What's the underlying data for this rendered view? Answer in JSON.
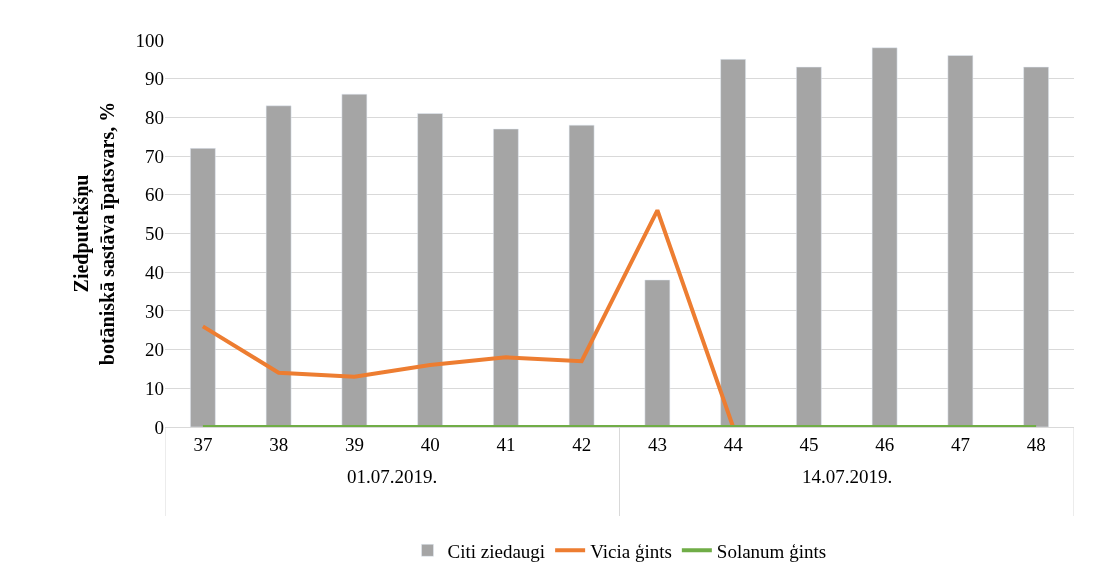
{
  "chart_data": {
    "type": "bar",
    "ylabel": "Ziedputekšņu\nbotāniskā sastāva īpatsvars, %",
    "categories": [
      "37",
      "38",
      "39",
      "40",
      "41",
      "42",
      "43",
      "44",
      "45",
      "46",
      "47",
      "48"
    ],
    "series": [
      {
        "name": "Citi ziedaugi",
        "color": "#a5a5a5",
        "values": [
          72,
          83,
          86,
          81,
          77,
          78,
          38,
          95,
          93,
          98,
          96,
          93
        ]
      },
      {
        "name": "Vicia ģints",
        "type": "line",
        "color": "#ed7d31",
        "values": [
          26,
          14,
          13,
          16,
          18,
          17,
          56,
          0,
          null,
          null,
          null,
          null
        ]
      },
      {
        "name": "Solanum ģints",
        "type": "line",
        "color": "#70ad47",
        "values": [
          0,
          0,
          0,
          0,
          0,
          0,
          0,
          0,
          0,
          0,
          0,
          0
        ]
      }
    ],
    "annotations": [
      "01.07.2019.",
      "14.07.2019."
    ],
    "ylim": [
      0,
      100
    ],
    "yticks": [
      0,
      10,
      20,
      30,
      40,
      50,
      60,
      70,
      80,
      90,
      100
    ],
    "grid": "y",
    "legend": "bottom",
    "marker": "none",
    "line_style": "solid"
  }
}
